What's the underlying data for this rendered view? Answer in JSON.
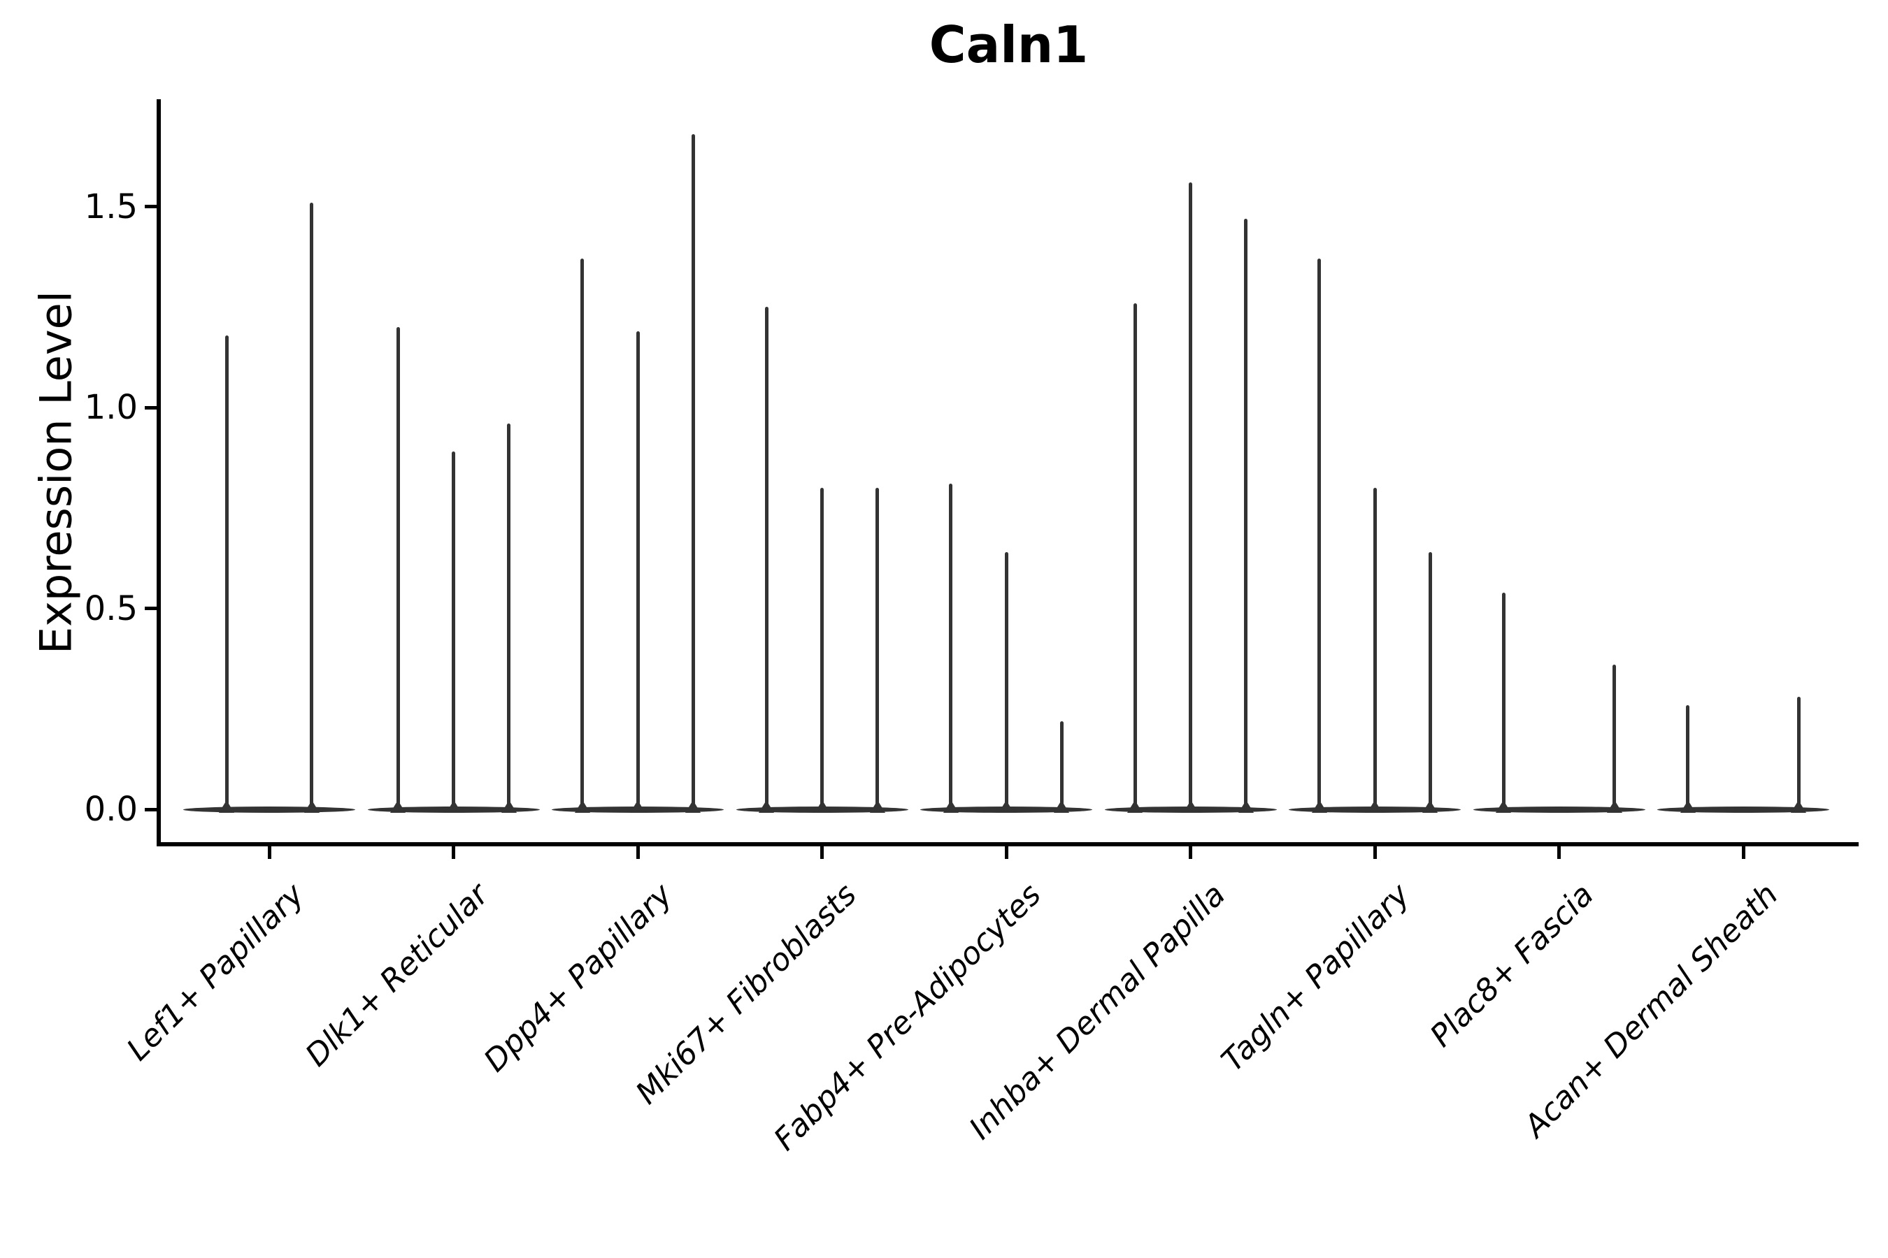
{
  "title": "Caln1",
  "axes": {
    "ylabel": "Expression Level",
    "ytick_labels": [
      "0.0",
      "0.5",
      "1.0",
      "1.5"
    ]
  },
  "chart_data": {
    "type": "violin",
    "title": "Caln1",
    "xlabel": "",
    "ylabel": "Expression Level",
    "ylim": [
      -0.09,
      1.77
    ],
    "yticks": [
      0.0,
      0.5,
      1.0,
      1.5
    ],
    "grid": false,
    "legend": "none",
    "violin_color": "#333333",
    "axis_color": "#000000",
    "categories": [
      "Lef1+ Papillary",
      "Dlk1+ Reticular",
      "Dpp4+ Papillary",
      "Mki67+ Fibroblasts",
      "Fabp4+ Pre-Adipocytes",
      "Inhba+ Dermal Papilla",
      "Tagln+ Papillary",
      "Plac8+ Fascia",
      "Acan+ Dermal Sheath"
    ],
    "groups": [
      {
        "label": "Lef1+ Papillary",
        "violins": [
          {
            "offset": -0.23,
            "max": 1.18
          },
          {
            "offset": 0.23,
            "max": 1.51
          }
        ]
      },
      {
        "label": "Dlk1+ Reticular",
        "violins": [
          {
            "offset": -0.3,
            "max": 1.2
          },
          {
            "offset": 0,
            "max": 0.89
          },
          {
            "offset": 0.3,
            "max": 0.96
          }
        ]
      },
      {
        "label": "Dpp4+ Papillary",
        "violins": [
          {
            "offset": -0.3,
            "max": 1.37
          },
          {
            "offset": 0,
            "max": 1.19
          },
          {
            "offset": 0.3,
            "max": 1.68
          }
        ]
      },
      {
        "label": "Mki67+ Fibroblasts",
        "violins": [
          {
            "offset": -0.3,
            "max": 1.25
          },
          {
            "offset": 0,
            "max": 0.8
          },
          {
            "offset": 0.3,
            "max": 0.8
          }
        ]
      },
      {
        "label": "Fabp4+ Pre-Adipocytes",
        "violins": [
          {
            "offset": -0.3,
            "max": 0.81
          },
          {
            "offset": 0,
            "max": 0.64
          },
          {
            "offset": 0.3,
            "max": 0.22
          }
        ]
      },
      {
        "label": "Inhba+ Dermal Papilla",
        "violins": [
          {
            "offset": -0.3,
            "max": 1.26
          },
          {
            "offset": 0,
            "max": 1.56
          },
          {
            "offset": 0.3,
            "max": 1.47
          }
        ]
      },
      {
        "label": "Tagln+ Papillary",
        "violins": [
          {
            "offset": -0.3,
            "max": 1.37
          },
          {
            "offset": 0,
            "max": 0.8
          },
          {
            "offset": 0.3,
            "max": 0.64
          }
        ]
      },
      {
        "label": "Plac8+ Fascia",
        "violins": [
          {
            "offset": -0.3,
            "max": 0.54
          },
          {
            "offset": 0,
            "max": 0.0
          },
          {
            "offset": 0.3,
            "max": 0.36
          }
        ]
      },
      {
        "label": "Acan+ Dermal Sheath",
        "violins": [
          {
            "offset": -0.3,
            "max": 0.26
          },
          {
            "offset": 0,
            "max": 0.0
          },
          {
            "offset": 0.3,
            "max": 0.28
          }
        ]
      }
    ]
  }
}
